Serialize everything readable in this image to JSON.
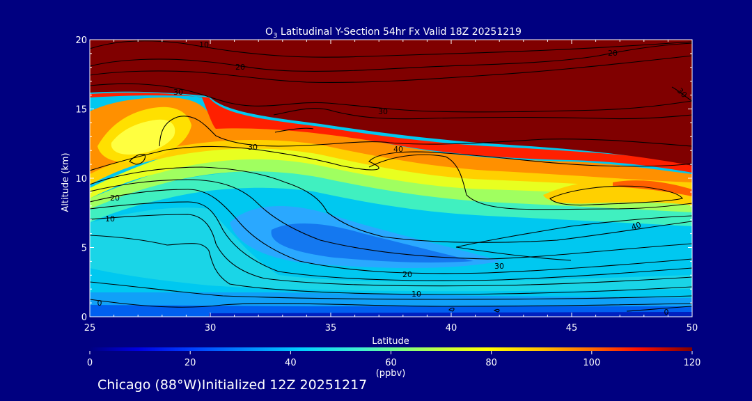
{
  "chart_data": {
    "type": "heatmap",
    "title_prefix": "O",
    "title_subscript": "3",
    "title_rest": " Latitudinal Y-Section 54hr  Fx Valid 18Z 20251219",
    "xlabel": "Latitude",
    "ylabel": "Altitude (km)",
    "xlim": [
      25,
      50
    ],
    "ylim": [
      0,
      20
    ],
    "x_ticks": [
      "25",
      "30",
      "35",
      "40",
      "45",
      "50"
    ],
    "y_ticks": [
      "0",
      "5",
      "10",
      "15",
      "20"
    ],
    "colorbar": {
      "range": [
        0,
        120
      ],
      "ticks": [
        "0",
        "20",
        "40",
        "60",
        "80",
        "100",
        "120"
      ],
      "unit_label": "(ppbv)"
    },
    "contour_labels": [
      "10",
      "20",
      "30",
      "30",
      "30",
      "40",
      "20",
      "30",
      "20",
      "10",
      "40",
      "30",
      "20",
      "10",
      "0",
      "0",
      "10",
      "30"
    ],
    "grid": false
  },
  "footer": {
    "text": "Chicago (88°W)Initialized 12Z 20251217"
  },
  "colors": {
    "background": "#000080",
    "text": "#ffffff",
    "contour": "#000000",
    "ozone_high": "#800000"
  }
}
